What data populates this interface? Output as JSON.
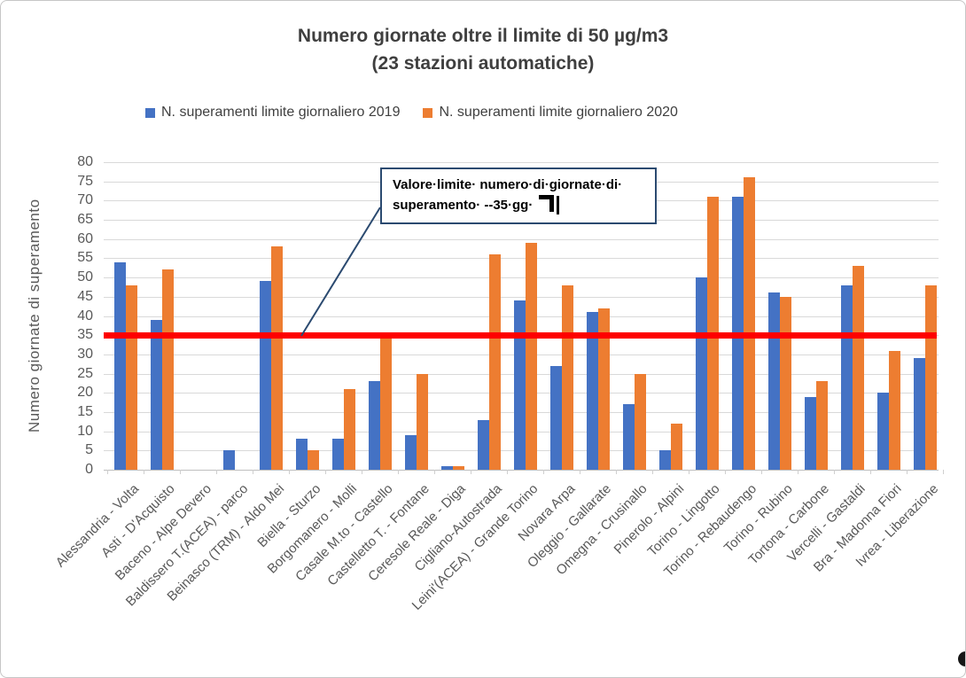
{
  "title": {
    "line1": "Numero giornate oltre il limite di 50 µg/m3",
    "line2": "(23 stazioni automatiche)"
  },
  "legend": [
    {
      "label": "N. superamenti limite giornaliero 2019",
      "color": "#4472C4"
    },
    {
      "label": "N. superamenti  limite giornaliero 2020",
      "color": "#ED7D31"
    }
  ],
  "annotation": {
    "line1": "Valore·limite· numero·di·giornate·di·",
    "line2": "superamento· --35·gg·",
    "border_color": "#2b4a70",
    "paragraph_mark": "¶"
  },
  "colors": {
    "series_2019": "#4472C4",
    "series_2020": "#ED7D31",
    "reference_line": "#FE0000",
    "gridline": "#d9d9d9",
    "axis_text": "#595959",
    "title_text": "#3f3f3f"
  },
  "chart_data": {
    "type": "bar",
    "title": "Numero giornate oltre il limite di 50 µg/m3 (23 stazioni automatiche)",
    "ylabel": "Numero giornate di superamento",
    "xlabel": "",
    "ylim": [
      0,
      80
    ],
    "yticks": [
      0,
      5,
      10,
      15,
      20,
      25,
      30,
      35,
      40,
      45,
      50,
      55,
      60,
      65,
      70,
      75,
      80
    ],
    "grid": true,
    "legend_position": "top",
    "categories": [
      "Alessandria - Volta",
      "Asti - D'Acquisto",
      "Baceno - Alpe Devero",
      "Baldissero T.(ACEA) - parco",
      "Beinasco (TRM) - Aldo Mei",
      "Biella - Sturzo",
      "Borgomanero - Molli",
      "Casale M.to - Castello",
      "Castelletto T. - Fontane",
      "Ceresole Reale - Diga",
      "Cigliano-Autostrada",
      "Leini'(ACEA) - Grande Torino",
      "Novara Arpa",
      "Oleggio - Gallarate",
      "Omegna - Crusinallo",
      "Pinerolo - Alpini",
      "Torino - Lingotto",
      "Torino - Rebaudengo",
      "Torino - Rubino",
      "Tortona - Carbone",
      "Vercelli - Gastaldi",
      "Bra - Madonna Fiori",
      "Ivrea - Liberazione"
    ],
    "series": [
      {
        "name": "N. superamenti limite giornaliero 2019",
        "color": "#4472C4",
        "values": [
          54,
          39,
          0,
          5,
          49,
          8,
          8,
          23,
          9,
          1,
          13,
          44,
          27,
          41,
          17,
          5,
          50,
          71,
          46,
          19,
          48,
          20,
          29
        ]
      },
      {
        "name": "N. superamenti  limite giornaliero 2020",
        "color": "#ED7D31",
        "values": [
          48,
          52,
          0,
          0,
          58,
          5,
          21,
          35,
          25,
          1,
          56,
          59,
          48,
          42,
          25,
          12,
          71,
          76,
          45,
          23,
          53,
          31,
          48
        ]
      }
    ],
    "reference_line": {
      "value": 35,
      "color": "#FE0000",
      "label": "Valore limite numero di giornate di superamento - 35 gg"
    }
  }
}
